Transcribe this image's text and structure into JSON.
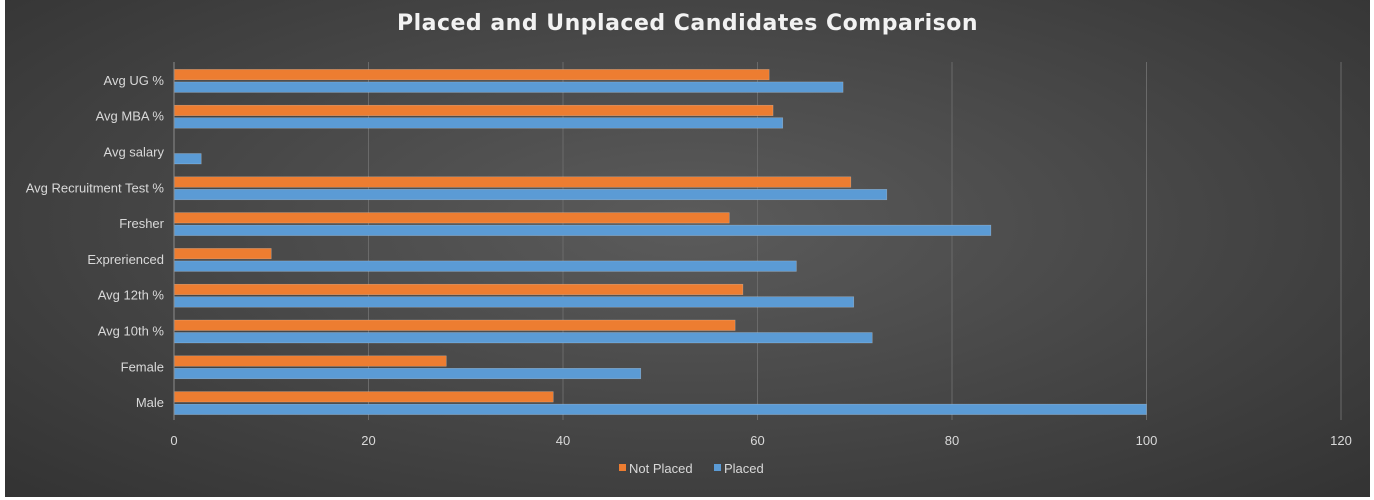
{
  "chart_data": {
    "type": "bar",
    "orientation": "horizontal",
    "title": "Placed and Unplaced Candidates Comparison",
    "categories": [
      "Avg UG %",
      "Avg MBA %",
      "Avg salary",
      "Avg Recruitment Test %",
      "Fresher",
      "Exprerienced",
      "Avg 12th %",
      "Avg 10th %",
      "Female",
      "Male"
    ],
    "series": [
      {
        "name": "Not Placed",
        "color": "#ed7d31",
        "values": [
          61.2,
          61.6,
          null,
          69.6,
          57.1,
          10,
          58.5,
          57.7,
          28,
          39
        ]
      },
      {
        "name": "Placed",
        "color": "#5b9bd5",
        "values": [
          68.8,
          62.6,
          2.8,
          73.3,
          84,
          64,
          69.9,
          71.8,
          48,
          100
        ]
      }
    ],
    "xlim": [
      0,
      120
    ],
    "xticks": [
      0,
      20,
      40,
      60,
      80,
      100,
      120
    ],
    "grid": true,
    "legend_position": "bottom",
    "xlabel": "",
    "ylabel": ""
  }
}
